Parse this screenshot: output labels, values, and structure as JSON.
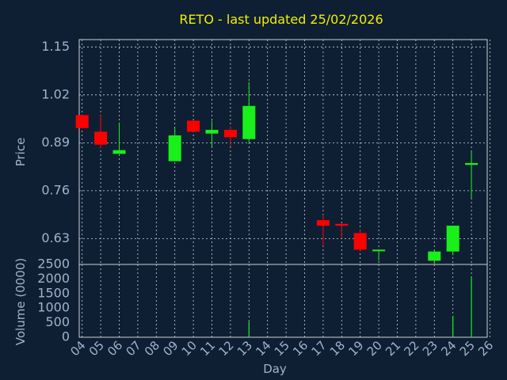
{
  "chart_data": {
    "type": "candlestick",
    "title": "RETO - last updated 25/02/2026",
    "xlabel": "Day",
    "price_panel": {
      "ylabel": "Price",
      "ylim": [
        0.56,
        1.17
      ],
      "yticks": [
        "1.15",
        "1.02",
        "0.89",
        "0.76",
        "0.63"
      ],
      "ytick_values": [
        1.15,
        1.02,
        0.89,
        0.76,
        0.63
      ]
    },
    "volume_panel": {
      "ylabel": "Volume (0000)",
      "ylim": [
        0,
        2500
      ],
      "yticks": [
        "2500",
        "2000",
        "1500",
        "1000",
        "500",
        "0"
      ],
      "ytick_values": [
        2500,
        2000,
        1500,
        1000,
        500,
        0
      ]
    },
    "x_ticks": [
      "04",
      "05",
      "06",
      "07",
      "08",
      "09",
      "10",
      "11",
      "12",
      "13",
      "14",
      "15",
      "16",
      "17",
      "18",
      "19",
      "20",
      "21",
      "22",
      "23",
      "24",
      "25",
      "26"
    ],
    "candles": [
      {
        "day": "04",
        "open": 0.965,
        "high": 0.965,
        "low": 0.93,
        "close": 0.93
      },
      {
        "day": "05",
        "open": 0.92,
        "high": 0.965,
        "low": 0.875,
        "close": 0.885
      },
      {
        "day": "06",
        "open": 0.86,
        "high": 0.945,
        "low": 0.86,
        "close": 0.87
      },
      {
        "day": "09",
        "open": 0.84,
        "high": 0.93,
        "low": 0.84,
        "close": 0.91
      },
      {
        "day": "10",
        "open": 0.95,
        "high": 0.95,
        "low": 0.92,
        "close": 0.92
      },
      {
        "day": "11",
        "open": 0.915,
        "high": 0.95,
        "low": 0.88,
        "close": 0.925
      },
      {
        "day": "12",
        "open": 0.925,
        "high": 0.935,
        "low": 0.88,
        "close": 0.905
      },
      {
        "day": "13",
        "open": 0.9,
        "high": 1.055,
        "low": 0.89,
        "close": 0.99
      },
      {
        "day": "17",
        "open": 0.68,
        "high": 0.695,
        "low": 0.61,
        "close": 0.665
      },
      {
        "day": "18",
        "open": 0.67,
        "high": 0.67,
        "low": 0.63,
        "close": 0.665
      },
      {
        "day": "19",
        "open": 0.645,
        "high": 0.655,
        "low": 0.595,
        "close": 0.6
      },
      {
        "day": "20",
        "open": 0.6,
        "high": 0.6,
        "low": 0.57,
        "close": 0.6
      },
      {
        "day": "23",
        "open": 0.57,
        "high": 0.6,
        "low": 0.562,
        "close": 0.595
      },
      {
        "day": "24",
        "open": 0.595,
        "high": 0.665,
        "low": 0.585,
        "close": 0.665
      },
      {
        "day": "25",
        "open": 0.83,
        "high": 0.865,
        "low": 0.74,
        "close": 0.835
      }
    ],
    "volume": [
      {
        "day": "13",
        "value": 540
      },
      {
        "day": "24",
        "value": 730
      },
      {
        "day": "25",
        "value": 2090
      }
    ],
    "colors": {
      "background": "#0f1f33",
      "up": "#19f019",
      "down": "#ff0000",
      "title": "#f0f000",
      "axis_text": "#9fb3cc",
      "grid": "#c8d0da"
    }
  }
}
